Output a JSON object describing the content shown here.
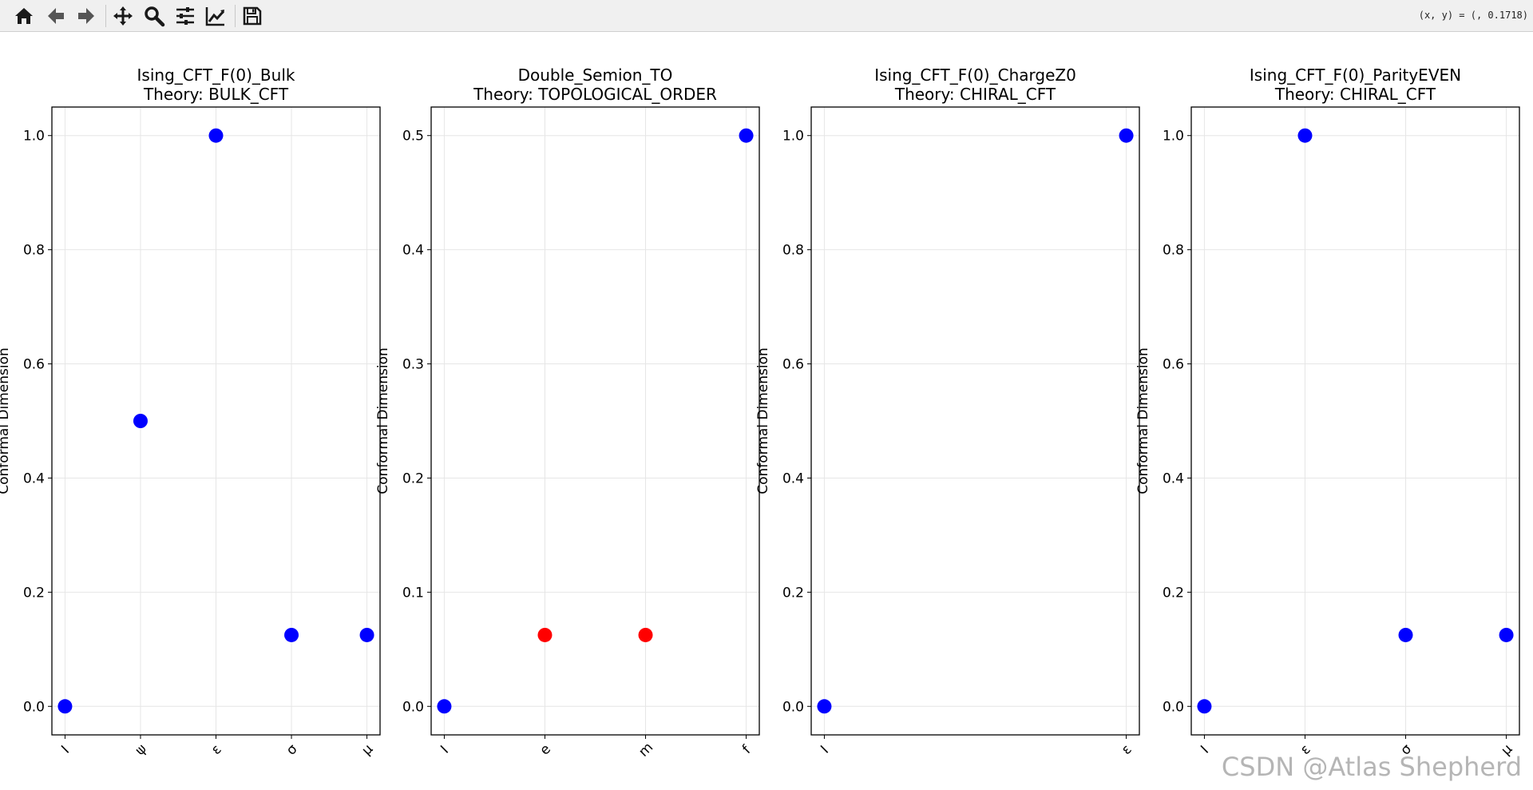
{
  "toolbar": {
    "buttons": [
      {
        "name": "home-icon"
      },
      {
        "name": "back-icon"
      },
      {
        "name": "forward-icon"
      },
      {
        "name": "pan-icon"
      },
      {
        "name": "zoom-icon"
      },
      {
        "name": "configure-subplots-icon"
      },
      {
        "name": "edit-axis-icon"
      },
      {
        "name": "save-icon"
      }
    ],
    "coords": "(x, y) = (, 0.1718)"
  },
  "watermark": "CSDN @Atlas Shepherd",
  "colors": {
    "default": "#0000ff",
    "highlight": "#ff0000",
    "grid": "#e6e6e6"
  },
  "chart_data": [
    {
      "type": "scatter",
      "title": "Ising_CFT_F(0)_Bulk",
      "subtitle": "Theory: BULK_CFT",
      "ylabel": "Conformal Dimension",
      "xlabel": "",
      "categories": [
        "I",
        "ψ",
        "ε",
        "σ",
        "μ"
      ],
      "values": [
        0,
        0.5,
        1.0,
        0.125,
        0.125
      ],
      "point_colors": [
        "#0000ff",
        "#0000ff",
        "#0000ff",
        "#0000ff",
        "#0000ff"
      ],
      "ylim": [
        -0.05,
        1.05
      ],
      "yticks": [
        0.0,
        0.2,
        0.4,
        0.6,
        0.8,
        1.0
      ],
      "ytick_labels": [
        "0.0",
        "0.2",
        "0.4",
        "0.6",
        "0.8",
        "1.0"
      ],
      "grid": true
    },
    {
      "type": "scatter",
      "title": "Double_Semion_TO",
      "subtitle": "Theory: TOPOLOGICAL_ORDER",
      "ylabel": "Conformal Dimension",
      "xlabel": "",
      "categories": [
        "I",
        "e",
        "m",
        "f"
      ],
      "values": [
        0,
        0.0625,
        0.0625,
        0.5
      ],
      "point_colors": [
        "#0000ff",
        "#ff0000",
        "#ff0000",
        "#0000ff"
      ],
      "ylim": [
        -0.025,
        0.525
      ],
      "yticks": [
        0.0,
        0.1,
        0.2,
        0.3,
        0.4,
        0.5
      ],
      "ytick_labels": [
        "0.0",
        "0.1",
        "0.2",
        "0.3",
        "0.4",
        "0.5"
      ],
      "grid": true
    },
    {
      "type": "scatter",
      "title": "Ising_CFT_F(0)_ChargeZ0",
      "subtitle": "Theory: CHIRAL_CFT",
      "ylabel": "Conformal Dimension",
      "xlabel": "",
      "categories": [
        "I",
        "ε"
      ],
      "values": [
        0,
        1.0
      ],
      "point_colors": [
        "#0000ff",
        "#0000ff"
      ],
      "ylim": [
        -0.05,
        1.05
      ],
      "yticks": [
        0.0,
        0.2,
        0.4,
        0.6,
        0.8,
        1.0
      ],
      "ytick_labels": [
        "0.0",
        "0.2",
        "0.4",
        "0.6",
        "0.8",
        "1.0"
      ],
      "grid": true
    },
    {
      "type": "scatter",
      "title": "Ising_CFT_F(0)_ParityEVEN",
      "subtitle": "Theory: CHIRAL_CFT",
      "ylabel": "Conformal Dimension",
      "xlabel": "",
      "categories": [
        "I",
        "ε",
        "σ",
        "μ"
      ],
      "values": [
        0,
        1.0,
        0.125,
        0.125
      ],
      "point_colors": [
        "#0000ff",
        "#0000ff",
        "#0000ff",
        "#0000ff"
      ],
      "ylim": [
        -0.05,
        1.05
      ],
      "yticks": [
        0.0,
        0.2,
        0.4,
        0.6,
        0.8,
        1.0
      ],
      "ytick_labels": [
        "0.0",
        "0.2",
        "0.4",
        "0.6",
        "0.8",
        "1.0"
      ],
      "grid": true
    }
  ]
}
